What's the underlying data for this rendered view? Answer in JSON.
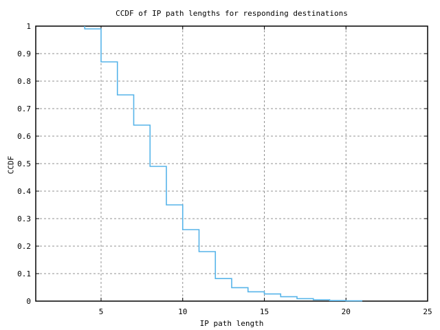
{
  "page": {
    "background": "#ffffff"
  },
  "colors": {
    "line": "#56b4e9",
    "grid": "#909090",
    "axis": "#000000",
    "text": "#000000"
  },
  "chart_data": {
    "type": "line",
    "style": "steps",
    "title": "CCDF of IP path lengths for responding destinations",
    "xlabel": "IP path length",
    "ylabel": "CCDF",
    "xlim": [
      1,
      25
    ],
    "ylim": [
      0,
      1
    ],
    "grid": true,
    "legend": "none",
    "x_ticks": [
      {
        "v": 5,
        "label": "5"
      },
      {
        "v": 10,
        "label": "10"
      },
      {
        "v": 15,
        "label": "15"
      },
      {
        "v": 20,
        "label": "20"
      },
      {
        "v": 25,
        "label": "25"
      }
    ],
    "y_ticks": [
      {
        "v": 0,
        "label": "0"
      },
      {
        "v": 0.1,
        "label": "0.1"
      },
      {
        "v": 0.2,
        "label": "0.2"
      },
      {
        "v": 0.3,
        "label": "0.3"
      },
      {
        "v": 0.4,
        "label": "0.4"
      },
      {
        "v": 0.5,
        "label": "0.5"
      },
      {
        "v": 0.6,
        "label": "0.6"
      },
      {
        "v": 0.7,
        "label": "0.7"
      },
      {
        "v": 0.8,
        "label": "0.8"
      },
      {
        "v": 0.9,
        "label": "0.9"
      },
      {
        "v": 1,
        "label": "1"
      }
    ],
    "series": [
      {
        "name": "CCDF of IP path lengths",
        "color": "#56b4e9",
        "step_mode": "post",
        "points": [
          [
            4,
            1.0
          ],
          [
            4,
            0.99
          ],
          [
            5,
            0.87
          ],
          [
            6,
            0.75
          ],
          [
            7,
            0.64
          ],
          [
            8,
            0.49
          ],
          [
            9,
            0.35
          ],
          [
            10,
            0.26
          ],
          [
            11,
            0.18
          ],
          [
            12,
            0.082
          ],
          [
            13,
            0.049
          ],
          [
            14,
            0.034
          ],
          [
            15,
            0.026
          ],
          [
            16,
            0.016
          ],
          [
            17,
            0.009
          ],
          [
            18,
            0.005
          ],
          [
            19,
            0.002
          ],
          [
            20,
            0.001
          ],
          [
            21,
            0.001
          ]
        ]
      }
    ]
  }
}
